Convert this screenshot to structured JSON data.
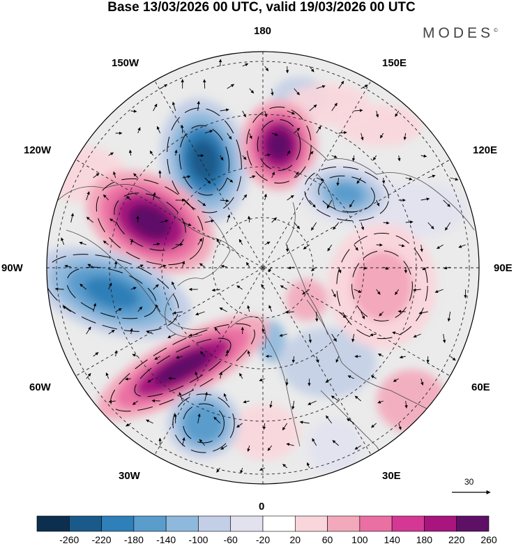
{
  "title": "Base 13/03/2026 00 UTC, valid 19/03/2026 00 UTC",
  "brand": "MODES",
  "brand_mark": "©",
  "longitudes": {
    "top": "180",
    "bottom": "0",
    "left": "90W",
    "right": "90E",
    "upper_left": "150W",
    "upper_right": "150E",
    "upper_left_mid": "120W",
    "upper_right_mid": "120E",
    "lower_left_mid": "60W",
    "lower_right_mid": "60E",
    "lower_left": "30W",
    "lower_right": "30E"
  },
  "reference_vector": {
    "label": "30"
  },
  "colorbar": {
    "labels": [
      "-260",
      "-220",
      "-180",
      "-140",
      "-100",
      "-60",
      "-20",
      "20",
      "60",
      "100",
      "140",
      "180",
      "220",
      "260"
    ],
    "colors": [
      "#0d2f4f",
      "#1a5a8a",
      "#2f7fb8",
      "#5a9ccc",
      "#8eb8dc",
      "#c3cfe6",
      "#e2e2ef",
      "#ffffff",
      "#f9d6dc",
      "#f3a8bb",
      "#ea6fa3",
      "#d43894",
      "#a9157f",
      "#5e1067"
    ]
  },
  "anomalies": [
    {
      "name": "pacific-low",
      "value": -240
    },
    {
      "name": "beaufort-high",
      "value": 230
    },
    {
      "name": "canada-high",
      "value": 240
    },
    {
      "name": "hudson-low",
      "value": -200
    },
    {
      "name": "greenland-high",
      "value": 240
    },
    {
      "name": "atlantic-low",
      "value": -180
    },
    {
      "name": "siberia-low",
      "value": -160
    },
    {
      "name": "eurasia-high",
      "value": 80
    }
  ]
}
